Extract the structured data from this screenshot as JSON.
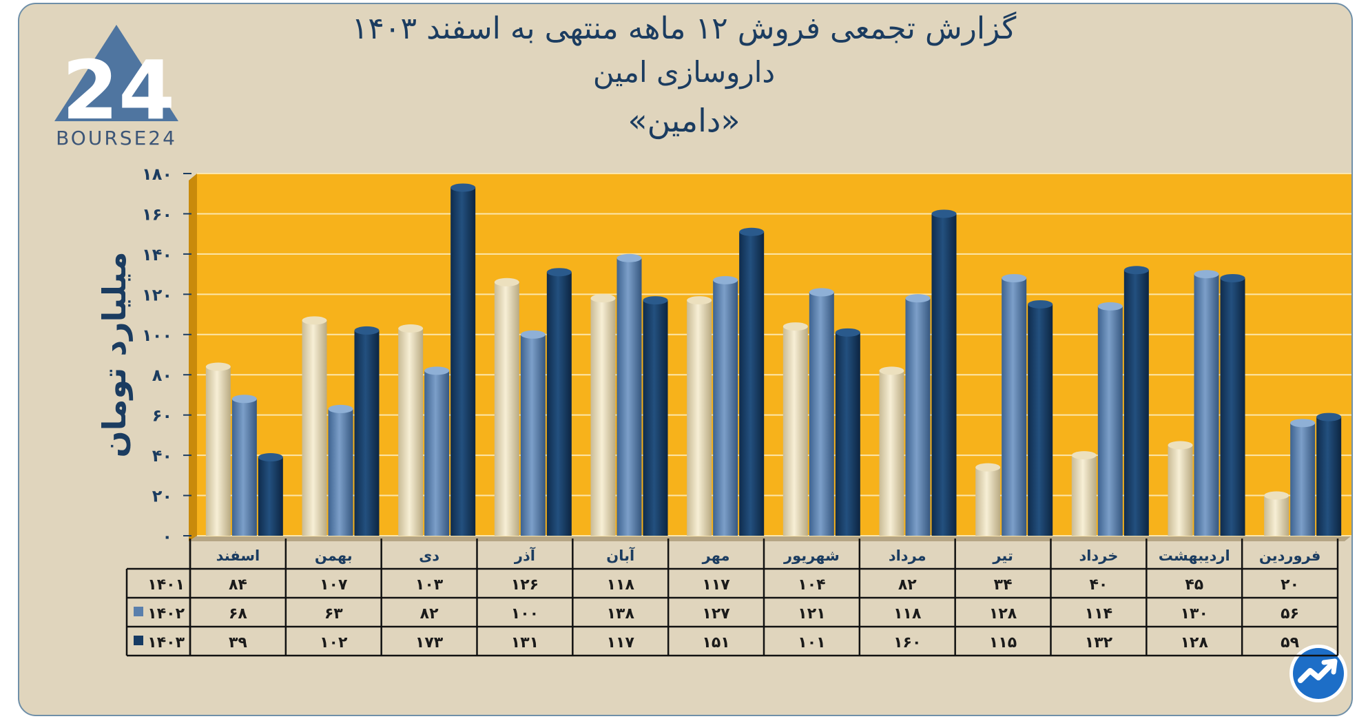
{
  "header": {
    "title_line1": "گزارش تجمعی فروش ۱۲ ماهه منتهی به اسفند ۱۴۰۳",
    "title_line2": "داروسازی امین",
    "title_line3": "«دامین»"
  },
  "logo": {
    "text": "BOURSE24",
    "mark": "24",
    "icon": "bourse24-triangle-logo"
  },
  "corner_icon": "chart-trend-arrow-icon",
  "colors": {
    "panel_background": "#e0d5bd",
    "plot_background": "#f7b21b",
    "series_1401": "#ece0be",
    "series_1402": "#5a7fac",
    "series_1403": "#163a63",
    "text": "#1b3c60"
  },
  "chart_data": {
    "type": "bar",
    "direction": "rtl",
    "ylabel": "میلیارد تومان",
    "ylim": [
      0,
      180
    ],
    "yticks": [
      0,
      20,
      40,
      60,
      80,
      100,
      120,
      140,
      160,
      180
    ],
    "ytick_labels": [
      "۰",
      "۲۰",
      "۴۰",
      "۶۰",
      "۸۰",
      "۱۰۰",
      "۱۲۰",
      "۱۴۰",
      "۱۶۰",
      "۱۸۰"
    ],
    "grid": true,
    "categories": [
      "فروردین",
      "اردیبهشت",
      "خرداد",
      "تیر",
      "مرداد",
      "شهریور",
      "مهر",
      "آبان",
      "آذر",
      "دی",
      "بهمن",
      "اسفند"
    ],
    "series": [
      {
        "name": "۱۴۰۱",
        "values": [
          20,
          45,
          40,
          34,
          82,
          104,
          117,
          118,
          126,
          103,
          107,
          84
        ],
        "labels": [
          "۲۰",
          "۴۵",
          "۴۰",
          "۳۴",
          "۸۲",
          "۱۰۴",
          "۱۱۷",
          "۱۱۸",
          "۱۲۶",
          "۱۰۳",
          "۱۰۷",
          "۸۴"
        ]
      },
      {
        "name": "۱۴۰۲",
        "values": [
          56,
          130,
          114,
          128,
          118,
          121,
          127,
          138,
          100,
          82,
          63,
          68
        ],
        "labels": [
          "۵۶",
          "۱۳۰",
          "۱۱۴",
          "۱۲۸",
          "۱۱۸",
          "۱۲۱",
          "۱۲۷",
          "۱۳۸",
          "۱۰۰",
          "۸۲",
          "۶۳",
          "۶۸"
        ]
      },
      {
        "name": "۱۴۰۳",
        "values": [
          59,
          128,
          132,
          115,
          160,
          101,
          151,
          117,
          131,
          173,
          102,
          39
        ],
        "labels": [
          "۵۹",
          "۱۲۸",
          "۱۳۲",
          "۱۱۵",
          "۱۶۰",
          "۱۰۱",
          "۱۵۱",
          "۱۱۷",
          "۱۳۱",
          "۱۷۳",
          "۱۰۲",
          "۳۹"
        ]
      }
    ]
  }
}
